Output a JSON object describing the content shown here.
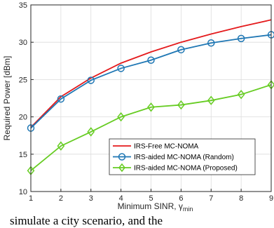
{
  "chart_data": {
    "type": "line",
    "xlabel": "Minimum SINR, γ",
    "xlabel_sub": "min",
    "ylabel": "Required Power [dBm]",
    "xlim": [
      1,
      9
    ],
    "ylim": [
      10,
      35
    ],
    "x": [
      1,
      2,
      3,
      4,
      5,
      6,
      7,
      8,
      9
    ],
    "xticks": [
      1,
      2,
      3,
      4,
      5,
      6,
      7,
      8,
      9
    ],
    "yticks": [
      10,
      15,
      20,
      25,
      30,
      35
    ],
    "grid": true,
    "legend_position": "lower-right",
    "series": [
      {
        "name": "IRS-Free MC-NOMA",
        "color": "#e41a1c",
        "marker": "none",
        "values": [
          18.6,
          22.7,
          25.2,
          27.2,
          28.7,
          30.0,
          31.1,
          32.1,
          33.0
        ]
      },
      {
        "name": "IRS-aided MC-NOMA (Random)",
        "color": "#1f77b4",
        "marker": "circle",
        "values": [
          18.5,
          22.4,
          24.9,
          26.5,
          27.6,
          29.0,
          29.9,
          30.5,
          31.0
        ]
      },
      {
        "name": "IRS-aided MC-NOMA (Proposed)",
        "color": "#66cc22",
        "marker": "diamond",
        "values": [
          12.8,
          16.1,
          18.0,
          20.0,
          21.3,
          21.6,
          22.2,
          23.0,
          24.3
        ]
      }
    ]
  },
  "footer_text": "simulate a city scenario, and the"
}
